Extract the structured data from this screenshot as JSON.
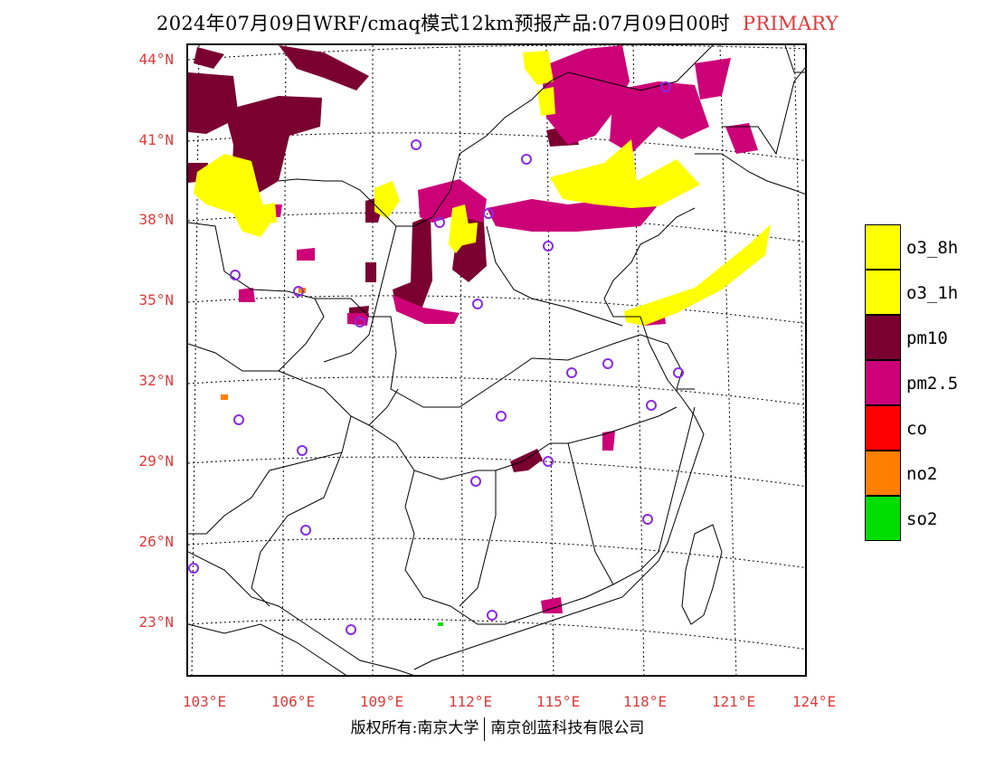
{
  "header": {
    "title": "2024年07月09日WRF/cmaq模式12km预报产品:07月09日00时",
    "tag": "PRIMARY"
  },
  "axes": {
    "lat_labels": [
      "44°N",
      "41°N",
      "38°N",
      "35°N",
      "32°N",
      "29°N",
      "26°N",
      "23°N"
    ],
    "lon_labels": [
      "103°E",
      "106°E",
      "109°E",
      "112°E",
      "115°E",
      "118°E",
      "121°E",
      "124°E"
    ]
  },
  "legend": [
    {
      "label": "o3_8h",
      "color": "#ffff00"
    },
    {
      "label": "o3_1h",
      "color": "#ffff00"
    },
    {
      "label": "pm10",
      "color": "#7a0030"
    },
    {
      "label": "pm2.5",
      "color": "#cc0077"
    },
    {
      "label": "co",
      "color": "#ff0000"
    },
    {
      "label": "no2",
      "color": "#ff7f00"
    },
    {
      "label": "so2",
      "color": "#00dd00"
    }
  ],
  "footer": {
    "left": "版权所有:南京大学",
    "right": "南京创蓝科技有限公司"
  },
  "colors": {
    "axis_label": "#e23a3a",
    "station_marker": "#8a2be2"
  }
}
